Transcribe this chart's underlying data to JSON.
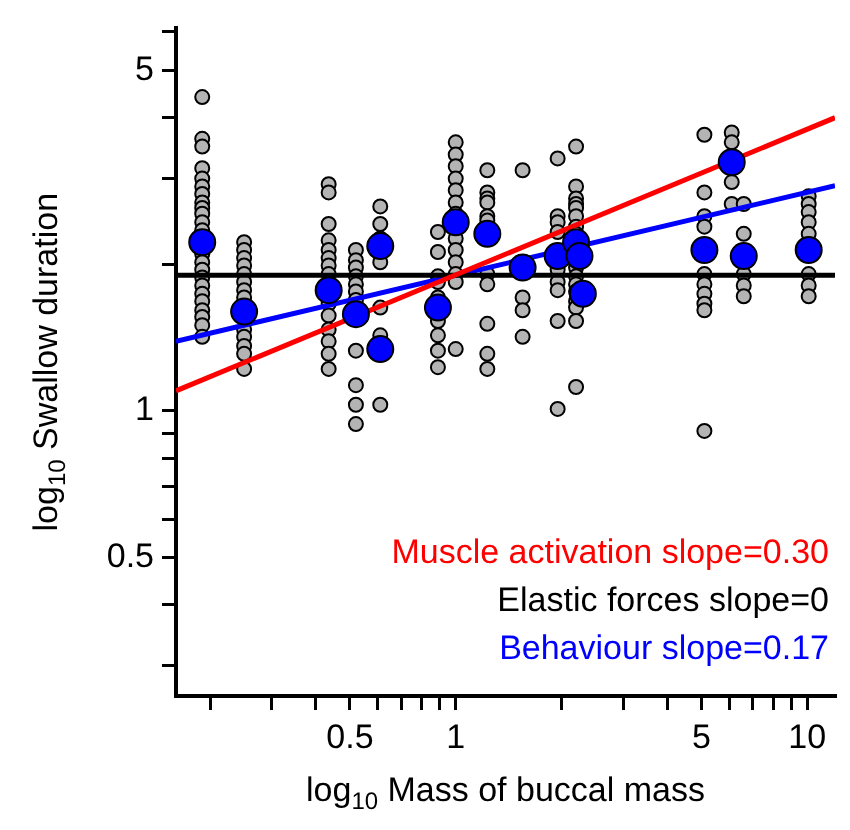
{
  "chart_data": {
    "type": "scatter",
    "xlabel": "log$_{10}$ Mass of buccal mass",
    "ylabel": "log$_{10}$ Swallow duration",
    "log": "xy",
    "grid": false,
    "legend": "bottom right",
    "marker": "circle",
    "xlim": [
      0.16,
      12
    ],
    "ylim": [
      0.26,
      6.1
    ],
    "xticks": [
      {
        "value": 0.2,
        "label": null
      },
      {
        "value": 0.3,
        "label": null
      },
      {
        "value": 0.4,
        "label": null
      },
      0.5,
      {
        "value": 0.6,
        "label": null
      },
      {
        "value": 0.7,
        "label": null
      },
      {
        "value": 0.8,
        "label": null
      },
      {
        "value": 0.9,
        "label": null
      },
      1,
      {
        "value": 2,
        "label": null
      },
      {
        "value": 3,
        "label": null
      },
      {
        "value": 4,
        "label": null
      },
      5,
      {
        "value": 6,
        "label": null
      },
      {
        "value": 7,
        "label": null
      },
      {
        "value": 8,
        "label": null
      },
      {
        "value": 9,
        "label": null
      },
      10
    ],
    "yticks": [
      {
        "value": 0.3,
        "label": null
      },
      {
        "value": 0.4,
        "label": null
      },
      0.5,
      {
        "value": 0.6,
        "label": null
      },
      {
        "value": 0.7,
        "label": null
      },
      {
        "value": 0.8,
        "label": null
      },
      {
        "value": 0.9,
        "label": null
      },
      1,
      {
        "value": 2,
        "label": null
      },
      {
        "value": 3,
        "label": null
      },
      {
        "value": 4,
        "label": null
      },
      5,
      {
        "value": 6,
        "label": null
      }
    ],
    "series": [
      {
        "color": "#b4b4b4",
        "x": [
          0.19,
          0.19,
          0.19,
          0.19,
          0.19,
          0.19,
          0.19,
          0.19,
          0.19,
          0.19,
          0.19,
          0.19,
          0.19,
          0.19,
          0.19,
          0.19,
          0.19,
          0.19,
          0.19,
          0.19,
          0.19,
          0.19,
          0.19,
          0.25,
          0.25,
          0.25,
          0.25,
          0.25,
          0.25,
          0.25,
          0.25,
          0.25,
          0.25,
          0.25,
          0.25,
          0.25,
          0.435,
          0.435,
          0.435,
          0.435,
          0.435,
          0.435,
          0.435,
          0.435,
          0.435,
          0.435,
          0.435,
          0.435,
          0.435,
          0.435,
          0.52,
          0.52,
          0.52,
          0.52,
          0.52,
          0.52,
          0.52,
          0.52,
          0.52,
          0.52,
          0.52,
          0.61,
          0.61,
          0.61,
          0.61,
          0.61,
          0.61,
          0.61,
          0.89,
          0.89,
          0.89,
          0.89,
          0.89,
          0.89,
          0.89,
          0.89,
          0.89,
          1,
          1,
          1,
          1,
          1,
          1,
          1,
          1,
          1,
          1,
          1,
          1,
          1,
          1.23,
          1.23,
          1.23,
          1.23,
          1.23,
          1.23,
          1.23,
          1.23,
          1.23,
          1.23,
          1.23,
          1.55,
          1.55,
          1.55,
          1.55,
          1.95,
          1.95,
          1.95,
          1.95,
          1.95,
          1.95,
          1.95,
          1.95,
          1.95,
          2.2,
          2.2,
          2.2,
          2.2,
          2.2,
          2.2,
          2.2,
          2.2,
          2.2,
          2.2,
          2.2,
          2.2,
          2.2,
          2.2,
          2.2,
          2.2,
          5.1,
          5.1,
          5.1,
          5.1,
          5.1,
          5.1,
          5.1,
          5.1,
          5.1,
          5.1,
          6.1,
          6.1,
          6.1,
          6.1,
          6.6,
          6.6,
          6.6,
          6.6,
          6.6,
          10.1,
          10.1,
          10.1,
          10.1,
          10.1,
          10.1,
          10.1,
          10.1
        ],
        "values": [
          4.41,
          3.62,
          3.49,
          3.15,
          3.0,
          2.89,
          2.79,
          2.68,
          2.61,
          2.54,
          2.44,
          2.35,
          2.1,
          2.02,
          1.95,
          1.88,
          1.81,
          1.74,
          1.68,
          1.61,
          1.56,
          1.5,
          1.42,
          2.22,
          2.14,
          2.06,
          1.99,
          1.91,
          1.84,
          1.77,
          1.71,
          1.47,
          1.42,
          1.36,
          1.31,
          1.22,
          2.92,
          2.81,
          2.42,
          2.24,
          2.14,
          2.06,
          1.99,
          1.91,
          1.66,
          1.57,
          1.47,
          1.39,
          1.31,
          1.22,
          2.14,
          2.04,
          1.97,
          1.89,
          1.82,
          1.76,
          1.69,
          1.33,
          1.13,
          1.03,
          0.94,
          2.63,
          2.42,
          2.26,
          2.02,
          1.63,
          1.43,
          1.03,
          2.33,
          2.12,
          1.89,
          1.84,
          1.71,
          1.53,
          1.43,
          1.33,
          1.23,
          3.56,
          3.36,
          3.18,
          3.0,
          2.84,
          2.68,
          2.54,
          2.26,
          2.14,
          2.02,
          1.91,
          1.84,
          1.34,
          3.12,
          2.81,
          2.73,
          2.68,
          2.51,
          2.46,
          1.91,
          1.82,
          1.51,
          1.31,
          1.22,
          3.12,
          1.71,
          1.61,
          1.42,
          3.3,
          2.51,
          2.44,
          2.33,
          1.95,
          1.84,
          1.77,
          1.53,
          1.01,
          3.49,
          2.89,
          2.73,
          2.66,
          2.61,
          2.51,
          2.39,
          2.31,
          1.97,
          1.89,
          1.82,
          1.76,
          1.68,
          1.63,
          1.53,
          1.12,
          3.69,
          2.81,
          2.51,
          2.39,
          1.91,
          1.82,
          1.74,
          1.66,
          1.61,
          0.91,
          3.73,
          3.56,
          2.95,
          2.66,
          2.66,
          2.31,
          1.91,
          1.81,
          1.72,
          2.76,
          2.66,
          2.56,
          2.44,
          2.31,
          1.91,
          1.81,
          1.72
        ]
      },
      {
        "type": "line",
        "marker": "none",
        "name": "Muscle activation slope=0.30",
        "color": "#ff0000",
        "x": [
          0.16,
          12
        ],
        "values": [
          1.1,
          4.0
        ]
      },
      {
        "type": "line",
        "marker": "none",
        "name": "Elastic forces slope=0",
        "color": "#000000",
        "x": [
          0.16,
          12
        ],
        "values": [
          1.9,
          1.9
        ]
      },
      {
        "type": "line",
        "marker": "none",
        "name": "Behaviour slope=0.17",
        "color": "#0000ff",
        "x": [
          0.16,
          12
        ],
        "values": [
          1.39,
          2.9
        ]
      },
      {
        "color": "#0000ff",
        "x": [
          0.19,
          0.25,
          0.435,
          0.52,
          0.61,
          0.61,
          0.89,
          1,
          1.23,
          1.55,
          1.95,
          2.2,
          2.25,
          2.3,
          5.1,
          6.1,
          6.6,
          10.1
        ],
        "values": [
          2.22,
          1.6,
          1.77,
          1.58,
          2.18,
          1.34,
          1.63,
          2.44,
          2.31,
          1.97,
          2.08,
          2.22,
          2.08,
          1.74,
          2.14,
          3.24,
          2.08,
          2.14
        ]
      }
    ]
  }
}
